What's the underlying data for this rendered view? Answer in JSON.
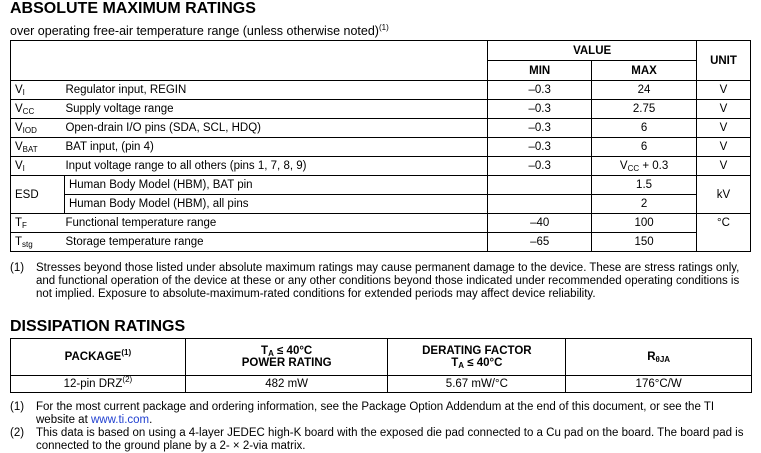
{
  "abs_max": {
    "title": "ABSOLUTE MAXIMUM RATINGS",
    "subtitle": "over operating free-air temperature range (unless otherwise noted)",
    "subtitle_note": "(1)",
    "headers": {
      "value": "VALUE",
      "min": "MIN",
      "max": "MAX",
      "unit": "UNIT"
    },
    "rows": [
      {
        "sym": "V",
        "sub": "I",
        "param": "Regulator input, REGIN",
        "min": "–0.3",
        "max": "24",
        "unit": "V"
      },
      {
        "sym": "V",
        "sub": "CC",
        "param": "Supply voltage range",
        "min": "–0.3",
        "max": "2.75",
        "unit": "V"
      },
      {
        "sym": "V",
        "sub": "IOD",
        "param": "Open-drain I/O pins (SDA, SCL, HDQ)",
        "min": "–0.3",
        "max": "6",
        "unit": "V"
      },
      {
        "sym": "V",
        "sub": "BAT",
        "param": "BAT input, (pin 4)",
        "min": "–0.3",
        "max": "6",
        "unit": "V"
      },
      {
        "sym": "V",
        "sub": "I",
        "param": "Input voltage range to all others (pins 1, 7, 8, 9)",
        "min": "–0.3",
        "max_sym": "V",
        "max_sub": "CC",
        "max_rest": " + 0.3",
        "unit": "V"
      }
    ],
    "esd": {
      "sym": "ESD",
      "rows": [
        {
          "param": "Human Body Model (HBM), BAT pin",
          "min": "",
          "max": "1.5"
        },
        {
          "param": "Human Body Model (HBM), all pins",
          "min": "",
          "max": "2"
        }
      ],
      "unit": "kV"
    },
    "temp_rows": [
      {
        "sym": "T",
        "sub": "F",
        "param": "Functional temperature range",
        "min": "–40",
        "max": "100"
      },
      {
        "sym": "T",
        "sub": "stg",
        "param": "Storage temperature range",
        "min": "–65",
        "max": "150"
      }
    ],
    "temp_unit": "°C",
    "footnote": {
      "num": "(1)",
      "text": "Stresses beyond those listed under absolute maximum ratings may cause permanent damage to the device. These are stress ratings only, and functional operation of the device at these or any other conditions beyond those indicated under recommended operating conditions is not implied. Exposure to absolute-maximum-rated conditions for extended periods may affect device reliability."
    }
  },
  "dissipation": {
    "title": "DISSIPATION RATINGS",
    "headers": {
      "package": "PACKAGE",
      "package_note": "(1)",
      "power_t": "T",
      "power_sub": "A",
      "power_cond": " ≤ 40°C",
      "power_label": "POWER RATING",
      "derating_label": "DERATING FACTOR",
      "derating_t": "T",
      "derating_sub": "A",
      "derating_cond": " ≤ 40°C",
      "r_sym": "R",
      "r_sub": "θJA"
    },
    "row": {
      "package": "12-pin DRZ",
      "package_note": "(2)",
      "power": "482 mW",
      "derating": "5.67 mW/°C",
      "rtheta": "176°C/W"
    },
    "footnotes": [
      {
        "num": "(1)",
        "text": "For the most current package and ordering information, see the Package Option Addendum at the end of this document, or see the TI website at ",
        "link": "www.ti.com",
        "after": "."
      },
      {
        "num": "(2)",
        "text": "This data is based on using a 4-layer JEDEC high-K board with the exposed die pad connected to a Cu pad on the board. The board pad is connected to the ground plane by a 2- × 2-via matrix."
      }
    ],
    "link_color": "#1f3fd0"
  }
}
